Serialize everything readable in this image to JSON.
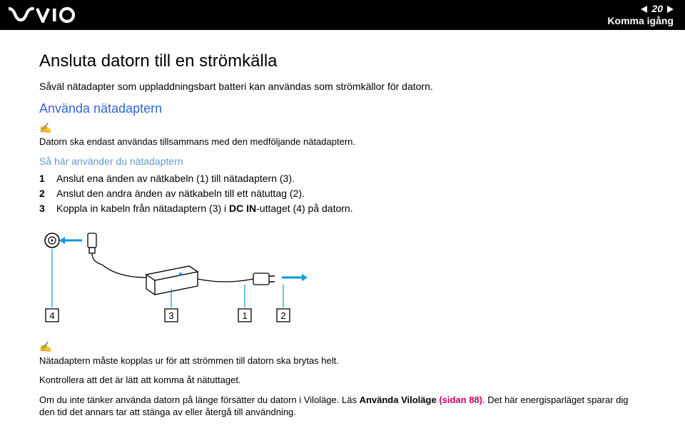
{
  "header": {
    "page_number": "20",
    "section": "Komma igång"
  },
  "colors": {
    "header_bg": "#000000",
    "header_fg": "#ffffff",
    "body_text": "#000000",
    "h2_color": "#3366cc",
    "h3_color": "#6699cc",
    "link_color": "#cc0066"
  },
  "title": "Ansluta datorn till en strömkälla",
  "intro": "Såväl nätadapter som uppladdningsbart batteri kan användas som strömkällor för datorn.",
  "subsection_title": "Använda nätadaptern",
  "note1": "Datorn ska endast användas tillsammans med den medföljande nätadaptern.",
  "procedure_title": "Så här använder du nätadaptern",
  "steps": {
    "s1_a": "Anslut ena änden av nätkabeln (1) till nätadaptern (3).",
    "s2_a": "Anslut den andra änden av nätkabeln till ett nätuttag (2).",
    "s3_a": "Koppla in kabeln från nätadaptern (3) i ",
    "s3_b": "DC IN",
    "s3_c": "-uttaget (4) på datorn."
  },
  "note2": "Nätadaptern måste kopplas ur för att strömmen till datorn ska brytas helt.",
  "note3": "Kontrollera att det är lätt att komma åt nätuttaget.",
  "note4_a": "Om du inte tänker använda datorn på länge försätter du datorn i Viloläge. Läs ",
  "note4_b": "Använda Viloläge (sidan 88)",
  "note4_c": ". Det här energisparläget sparar dig den tid det annars tar att stänga av eller återgå till användning."
}
